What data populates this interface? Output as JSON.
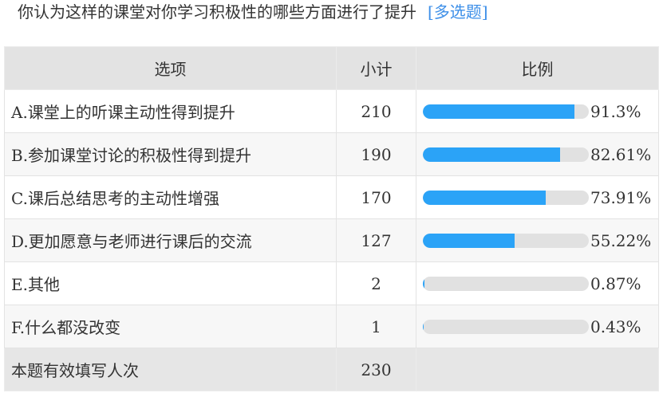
{
  "question": {
    "title": "你认为这样的课堂对你学习积极性的哪些方面进行了提升",
    "type_tag": "[多选题]"
  },
  "table": {
    "headers": [
      "选项",
      "小计",
      "比例"
    ],
    "rows": [
      {
        "option": "A.课堂上的听课主动性得到提升",
        "count": "210",
        "percent": "91.3%",
        "value": 91.3
      },
      {
        "option": "B.参加课堂讨论的积极性得到提升",
        "count": "190",
        "percent": "82.61%",
        "value": 82.61
      },
      {
        "option": "C.课后总结思考的主动性增强",
        "count": "170",
        "percent": "73.91%",
        "value": 73.91
      },
      {
        "option": "D.更加愿意与老师进行课后的交流",
        "count": "127",
        "percent": "55.22%",
        "value": 55.22
      },
      {
        "option": "E.其他",
        "count": "2",
        "percent": "0.87%",
        "value": 0.87
      },
      {
        "option": "F.什么都没改变",
        "count": "1",
        "percent": "0.43%",
        "value": 0.43
      }
    ],
    "footer": {
      "label": "本题有效填写人次",
      "count": "230"
    }
  },
  "colors": {
    "bar_fill": "#2ba3f7",
    "bar_track": "#e1e1e1",
    "tag": "#3d8fe8"
  }
}
